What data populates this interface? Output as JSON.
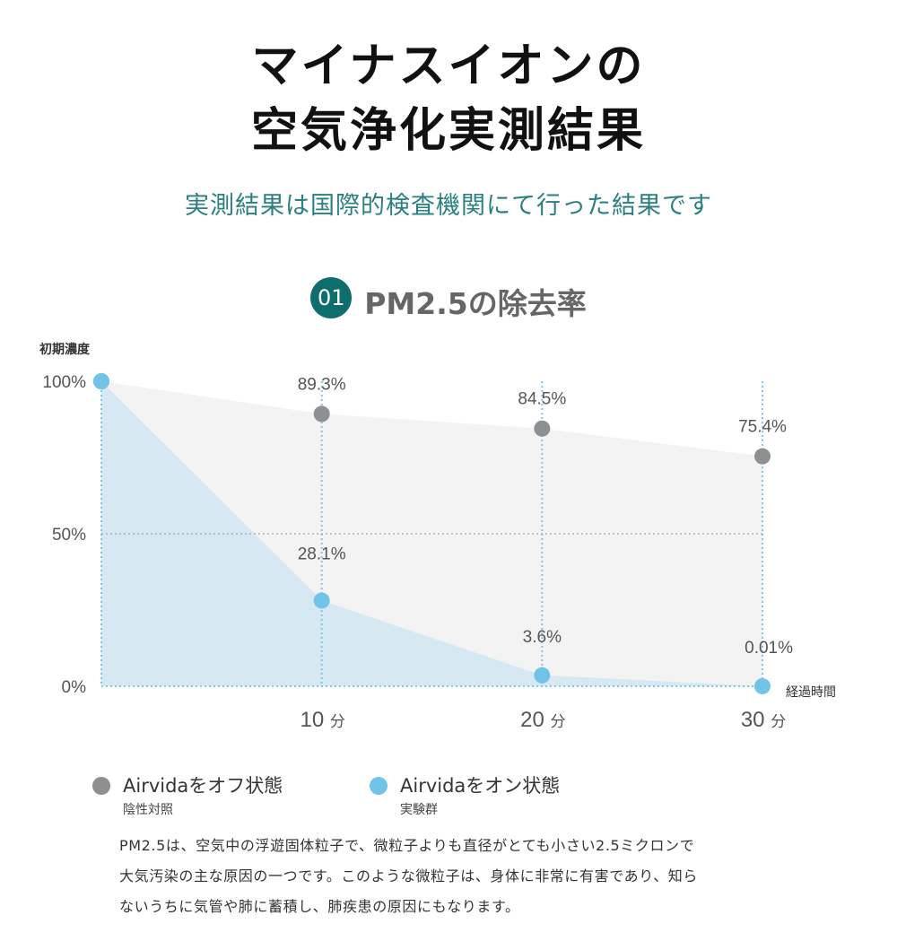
{
  "header": {
    "title_line1": "マイナスイオンの",
    "title_line2": "空気浄化実測結果",
    "subtitle": "実測結果は国際的検査機関にて行った結果です"
  },
  "section": {
    "number": "01",
    "title": "PM2.5の除去率"
  },
  "chart_data": {
    "type": "area",
    "ylabel": "初期濃度",
    "xlabel": "経過時間",
    "ylim": [
      0,
      100
    ],
    "y_ticks": [
      "100%",
      "50%",
      "0%"
    ],
    "categories": [
      "",
      "10 分",
      "20 分",
      "30 分"
    ],
    "x": [
      0,
      10,
      20,
      30
    ],
    "series": [
      {
        "name": "Airvidaをオフ状態",
        "values": [
          100,
          89.3,
          84.5,
          75.4
        ],
        "labels": [
          "",
          "89.3%",
          "84.5%",
          "75.4%"
        ],
        "color": "#8e8f91",
        "fill": "#f3f3f3"
      },
      {
        "name": "Airvidaをオン状態",
        "values": [
          100,
          28.1,
          3.6,
          0.01
        ],
        "labels": [
          "",
          "28.1%",
          "3.6%",
          "0.01%"
        ],
        "color": "#71c3e8",
        "fill": "#d6e9f2"
      }
    ],
    "grid": "dotted vertical lines at 10/20/30 分, dotted horizontal line at 50%",
    "legend_position": "bottom"
  },
  "legend": [
    {
      "label": "Airvidaをオフ状態",
      "sub": "陰性対照",
      "color": "#8e8f91"
    },
    {
      "label": "Airvidaをオン状態",
      "sub": "実験群",
      "color": "#71c3e8"
    }
  ],
  "description": [
    "PM2.5は、空気中の浮遊固体粒子で、微粒子よりも直径がとても小さい2.5ミクロンで",
    "大気汚染の主な原因の一つです。このような微粒子は、身体に非常に有害であり、知ら",
    "ないうちに気管や肺に蓄積し、肺疾患の原因にもなります。"
  ]
}
